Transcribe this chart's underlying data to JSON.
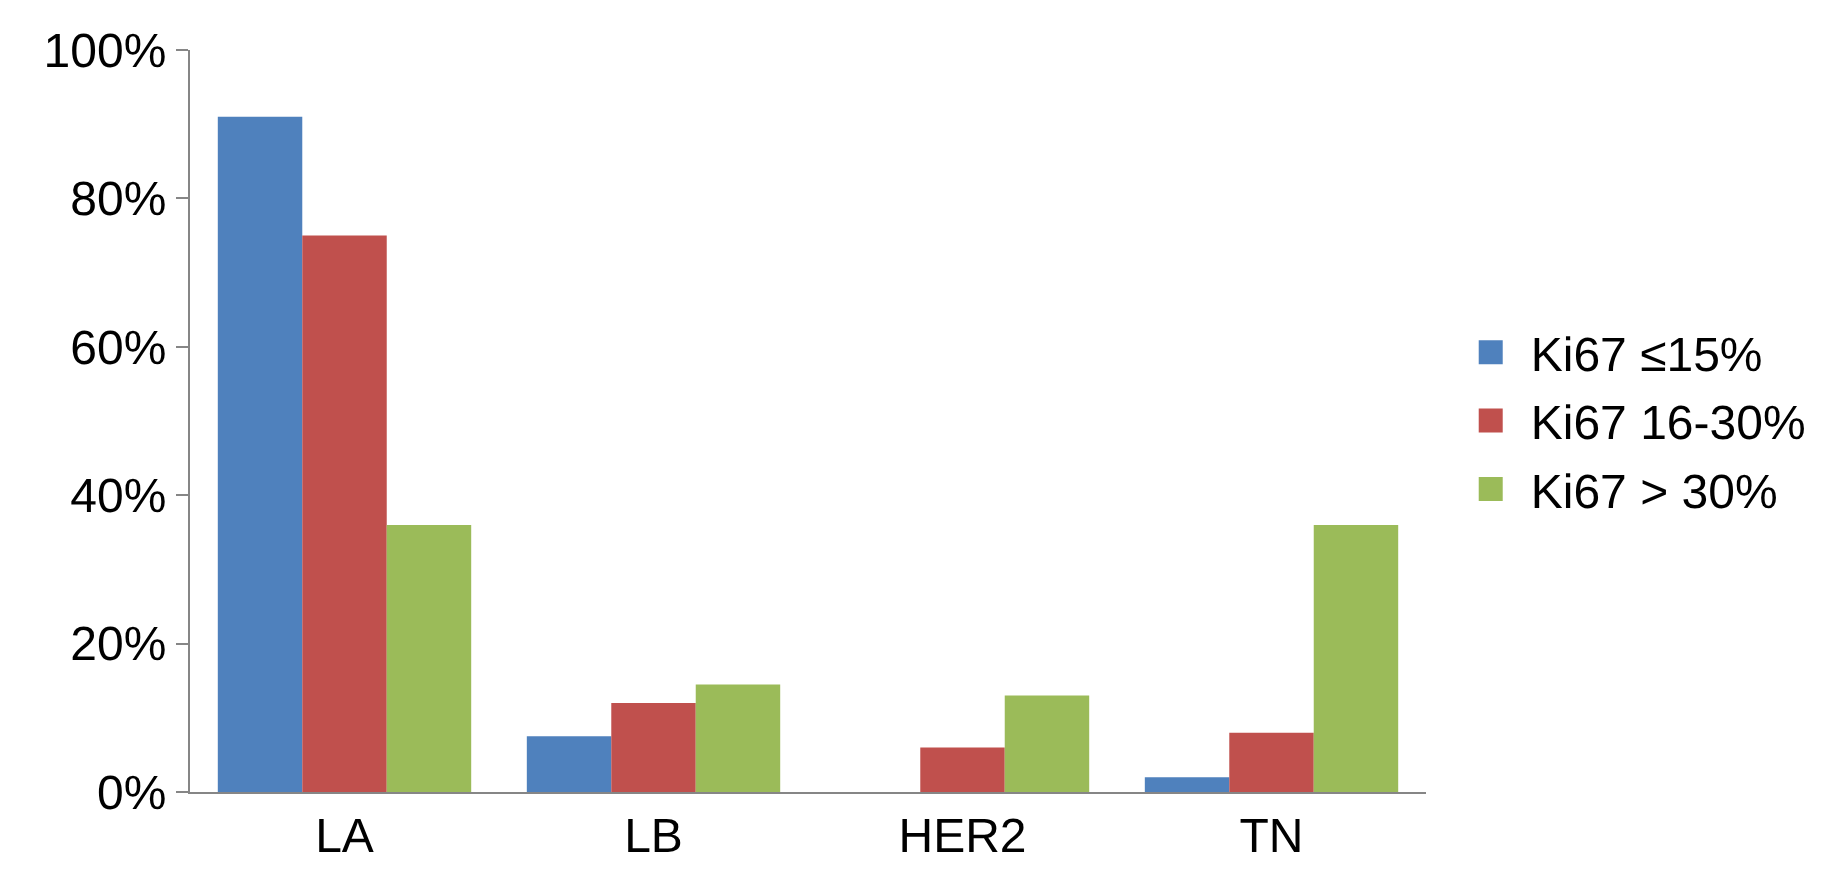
{
  "chart_data": {
    "type": "bar",
    "categories": [
      "LA",
      "LB",
      "HER2",
      "TN"
    ],
    "series": [
      {
        "name": "Ki67 ≤15%",
        "color": "#4f81bd",
        "values": [
          91,
          7.5,
          0,
          2
        ]
      },
      {
        "name": "Ki67 16-30%",
        "color": "#c0504d",
        "values": [
          75,
          12,
          6,
          8
        ]
      },
      {
        "name": "Ki67 > 30%",
        "color": "#9bbb59",
        "values": [
          36,
          14.5,
          13,
          36
        ]
      }
    ],
    "ylim": [
      0,
      100
    ],
    "yticks": [
      {
        "value": 0,
        "label": "0%"
      },
      {
        "value": 20,
        "label": "20%"
      },
      {
        "value": 40,
        "label": "40%"
      },
      {
        "value": 60,
        "label": "60%"
      },
      {
        "value": 80,
        "label": "80%"
      },
      {
        "value": 100,
        "label": "100%"
      }
    ],
    "legend": "right"
  }
}
